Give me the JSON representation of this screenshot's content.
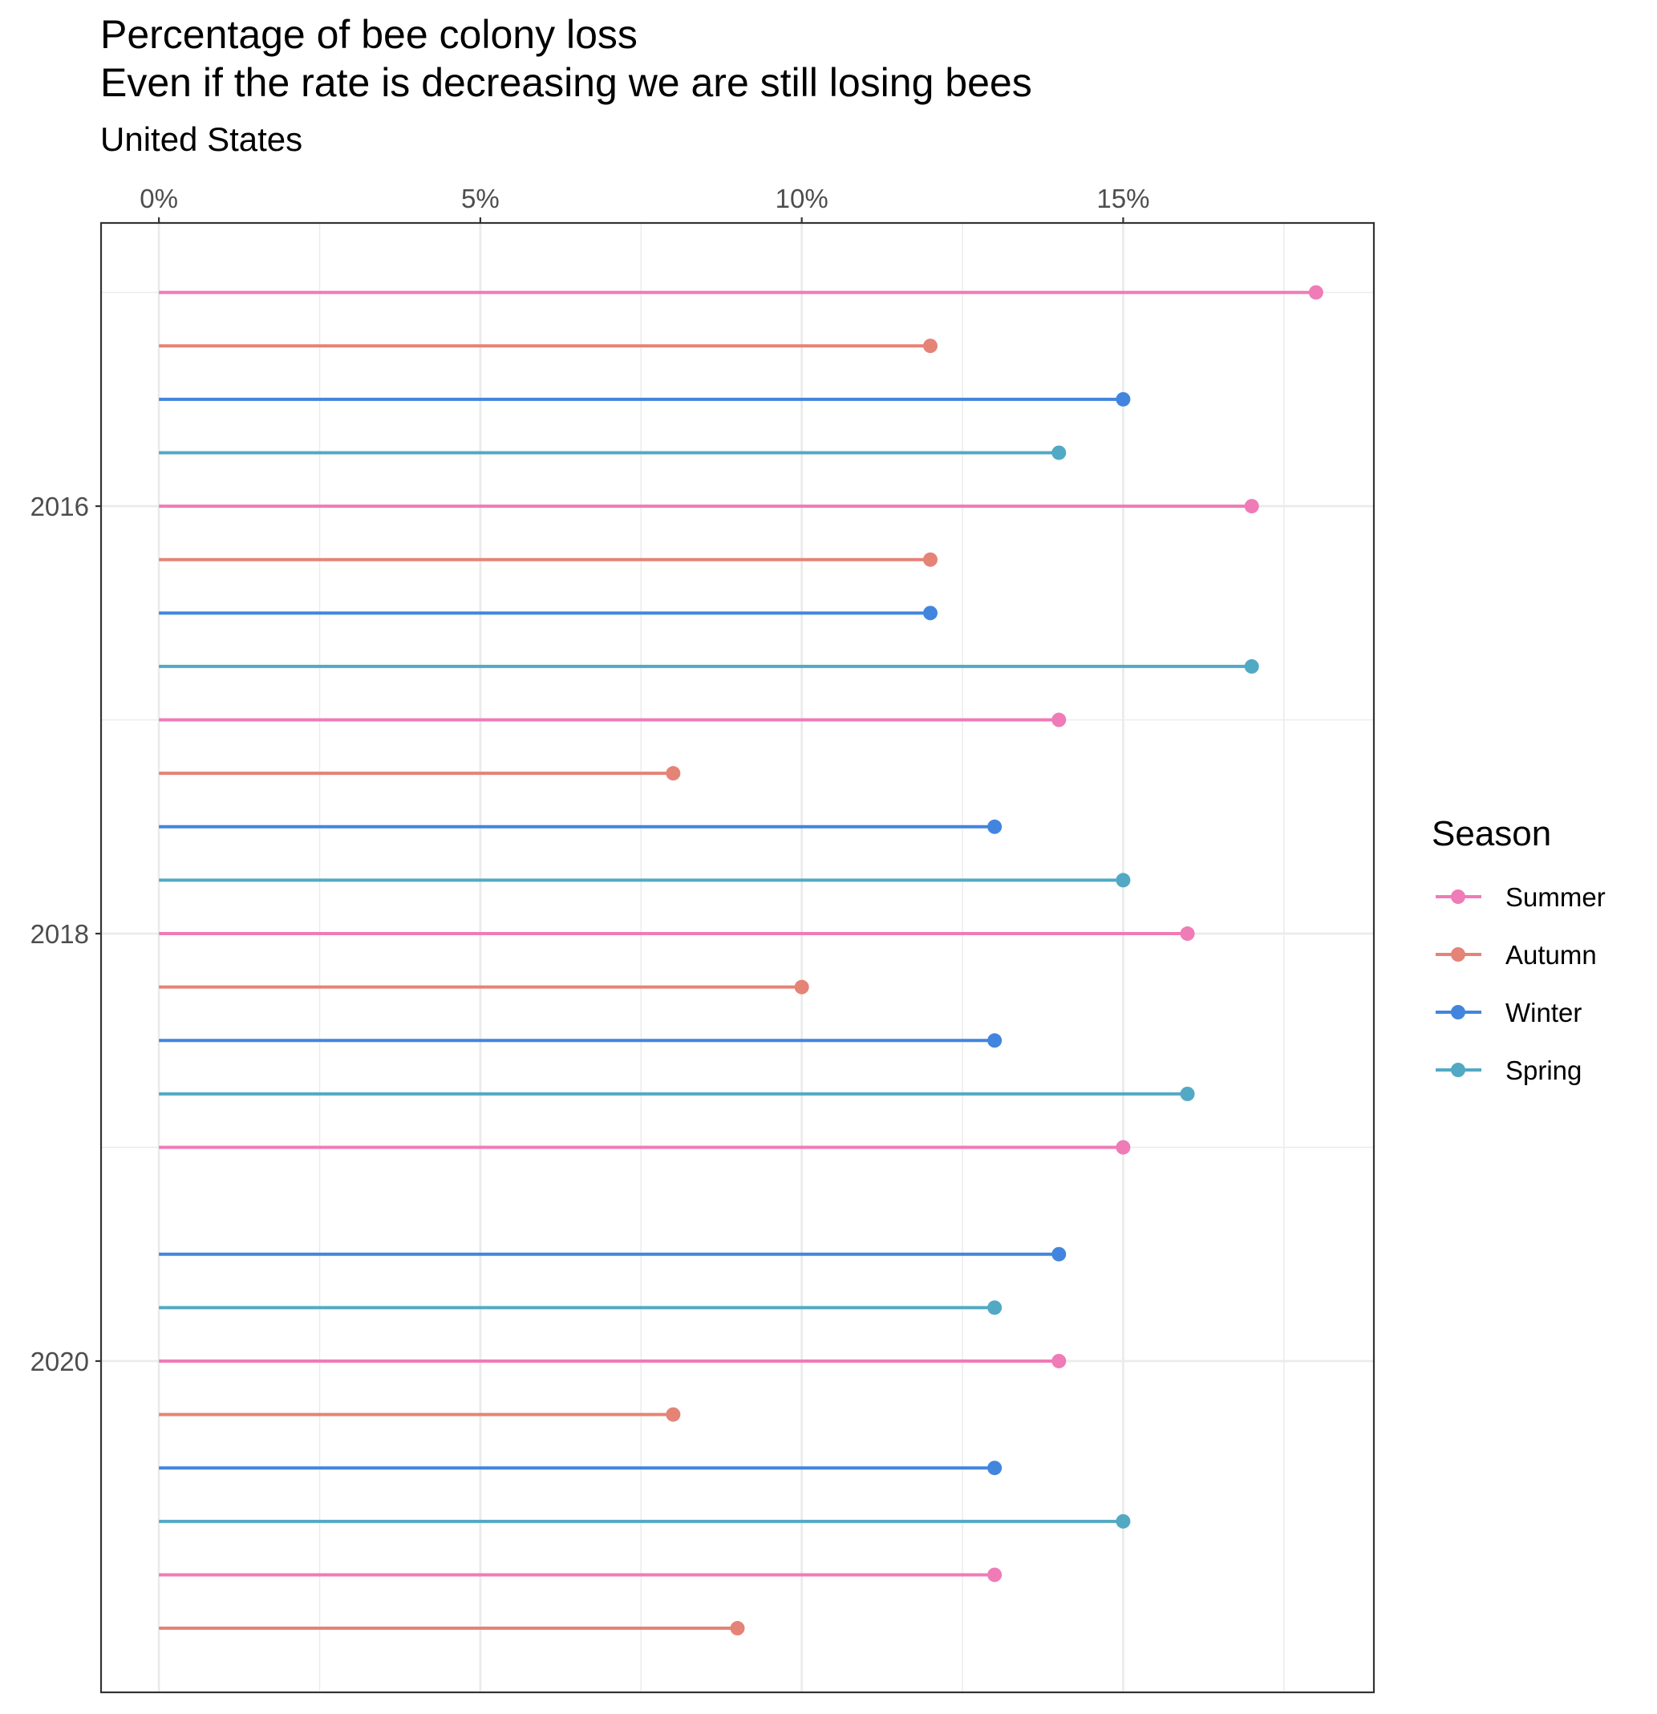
{
  "chart_data": {
    "type": "lollipop",
    "title": "Percentage of bee colony loss",
    "title_line2": "Even if the rate is decreasing we are still losing bees",
    "subtitle": "United States",
    "x_axis": {
      "position": "top",
      "ticks": [
        "0%",
        "5%",
        "10%",
        "15%"
      ],
      "tick_values": [
        0,
        5,
        10,
        15
      ],
      "range": [
        -0.9,
        18.9
      ],
      "minor_gridlines": [
        2.5,
        7.5,
        12.5,
        17.5
      ]
    },
    "y_axis": {
      "ticks": [
        "2016",
        "2018",
        "2020"
      ],
      "tick_values": [
        2016,
        2018,
        2020
      ],
      "range": [
        2014.675,
        2021.55
      ],
      "minor_gridlines": [
        2015,
        2017,
        2019
      ]
    },
    "grid": true,
    "legend": {
      "title": "Season",
      "position": "right",
      "items": [
        {
          "label": "Summer",
          "color": "#EF7BB7"
        },
        {
          "label": "Autumn",
          "color": "#E58377"
        },
        {
          "label": "Winter",
          "color": "#4285DE"
        },
        {
          "label": "Spring",
          "color": "#52A9C4"
        }
      ]
    },
    "points": [
      {
        "period": 2015.0,
        "season": "Summer",
        "value": 18
      },
      {
        "period": 2015.25,
        "season": "Autumn",
        "value": 12
      },
      {
        "period": 2015.5,
        "season": "Winter",
        "value": 15
      },
      {
        "period": 2015.75,
        "season": "Spring",
        "value": 14
      },
      {
        "period": 2016.0,
        "season": "Summer",
        "value": 17
      },
      {
        "period": 2016.25,
        "season": "Autumn",
        "value": 12
      },
      {
        "period": 2016.5,
        "season": "Winter",
        "value": 12
      },
      {
        "period": 2016.75,
        "season": "Spring",
        "value": 17
      },
      {
        "period": 2017.0,
        "season": "Summer",
        "value": 14
      },
      {
        "period": 2017.25,
        "season": "Autumn",
        "value": 8
      },
      {
        "period": 2017.5,
        "season": "Winter",
        "value": 13
      },
      {
        "period": 2017.75,
        "season": "Spring",
        "value": 15
      },
      {
        "period": 2018.0,
        "season": "Summer",
        "value": 16
      },
      {
        "period": 2018.25,
        "season": "Autumn",
        "value": 10
      },
      {
        "period": 2018.5,
        "season": "Winter",
        "value": 13
      },
      {
        "period": 2018.75,
        "season": "Spring",
        "value": 16
      },
      {
        "period": 2019.0,
        "season": "Summer",
        "value": 15
      },
      {
        "period": 2019.5,
        "season": "Winter",
        "value": 14
      },
      {
        "period": 2019.75,
        "season": "Spring",
        "value": 13
      },
      {
        "period": 2020.0,
        "season": "Summer",
        "value": 14
      },
      {
        "period": 2020.25,
        "season": "Autumn",
        "value": 8
      },
      {
        "period": 2020.5,
        "season": "Winter",
        "value": 13
      },
      {
        "period": 2020.75,
        "season": "Spring",
        "value": 15
      },
      {
        "period": 2021.0,
        "season": "Summer",
        "value": 13
      },
      {
        "period": 2021.25,
        "season": "Autumn",
        "value": 9
      }
    ]
  }
}
